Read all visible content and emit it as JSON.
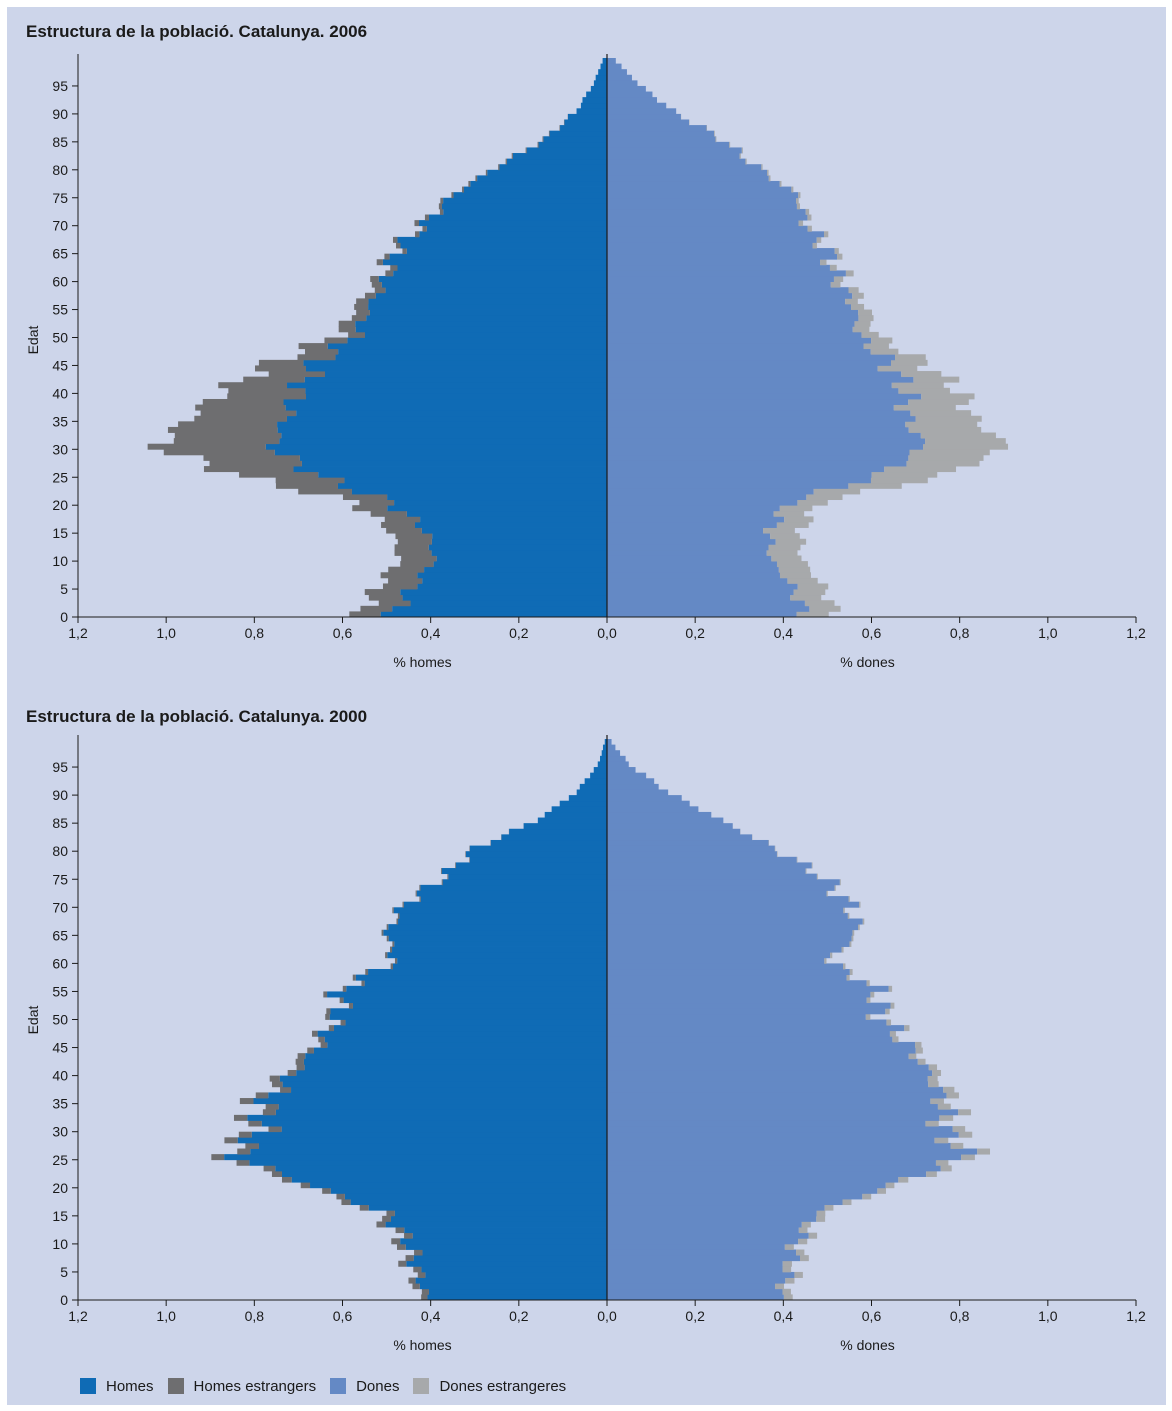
{
  "colors": {
    "homes": "#0f6bb5",
    "homes_estrangers": "#6e6e70",
    "dones": "#6489c5",
    "dones_estrangeres": "#a7a9ab",
    "background": "#cdd5ea"
  },
  "legend": [
    {
      "label": "Homes",
      "color": "#0f6bb5"
    },
    {
      "label": "Homes estrangers",
      "color": "#6e6e70"
    },
    {
      "label": "Dones",
      "color": "#6489c5"
    },
    {
      "label": "Dones estrangeres",
      "color": "#a7a9ab"
    }
  ],
  "chart_data": [
    {
      "type": "bar",
      "orientation": "horizontal",
      "title": "Estructura de la població. Catalunya. 2006",
      "ylabel": "Edat",
      "xlabel_left": "% homes",
      "xlabel_right": "% dones",
      "y_ticks": [
        0,
        5,
        10,
        15,
        20,
        25,
        30,
        35,
        40,
        45,
        50,
        55,
        60,
        65,
        70,
        75,
        80,
        85,
        90,
        95
      ],
      "x_tick_labels": [
        "1,2",
        "1,0",
        "0,8",
        "0,6",
        "0,4",
        "0,2",
        "0,0",
        "0,2",
        "0,4",
        "0,6",
        "0,8",
        "1,0",
        "1,2"
      ],
      "xlim": [
        -1.2,
        1.2
      ],
      "ylim": [
        0,
        99
      ],
      "age_groups": [
        0,
        5,
        10,
        15,
        20,
        25,
        30,
        35,
        40,
        45,
        50,
        55,
        60,
        65,
        70,
        75,
        80,
        85,
        90,
        95,
        99
      ],
      "series": [
        {
          "name": "Homes",
          "values": [
            0.49,
            0.44,
            0.39,
            0.41,
            0.49,
            0.66,
            0.76,
            0.73,
            0.7,
            0.66,
            0.57,
            0.54,
            0.5,
            0.48,
            0.41,
            0.35,
            0.25,
            0.14,
            0.07,
            0.03,
            0.01
          ]
        },
        {
          "name": "Homes estrangers",
          "values": [
            0.07,
            0.08,
            0.08,
            0.08,
            0.08,
            0.18,
            0.26,
            0.22,
            0.17,
            0.1,
            0.04,
            0.03,
            0.02,
            0.01,
            0.01,
            0.005,
            0.003,
            0.002,
            0.0,
            0.0,
            0.0
          ]
        },
        {
          "name": "Dones",
          "values": [
            0.45,
            0.42,
            0.37,
            0.37,
            0.41,
            0.62,
            0.72,
            0.68,
            0.68,
            0.64,
            0.57,
            0.56,
            0.52,
            0.5,
            0.45,
            0.43,
            0.34,
            0.26,
            0.15,
            0.07,
            0.02
          ]
        },
        {
          "name": "Dones estrangeres",
          "values": [
            0.07,
            0.07,
            0.07,
            0.07,
            0.07,
            0.15,
            0.19,
            0.15,
            0.12,
            0.08,
            0.04,
            0.03,
            0.02,
            0.01,
            0.01,
            0.005,
            0.003,
            0.002,
            0.0,
            0.0,
            0.0
          ]
        }
      ]
    },
    {
      "type": "bar",
      "orientation": "horizontal",
      "title": "Estructura de la població. Catalunya. 2000",
      "ylabel": "Edat",
      "xlabel_left": "% homes",
      "xlabel_right": "% dones",
      "y_ticks": [
        0,
        5,
        10,
        15,
        20,
        25,
        30,
        35,
        40,
        45,
        50,
        55,
        60,
        65,
        70,
        75,
        80,
        85,
        90,
        95
      ],
      "x_tick_labels": [
        "1,2",
        "1,0",
        "0,8",
        "0,6",
        "0,4",
        "0,2",
        "0,0",
        "0,2",
        "0,4",
        "0,6",
        "0,8",
        "1,0",
        "1,2"
      ],
      "xlim": [
        -1.2,
        1.2
      ],
      "ylim": [
        0,
        99
      ],
      "age_groups": [
        0,
        5,
        10,
        15,
        20,
        25,
        30,
        35,
        40,
        45,
        50,
        55,
        60,
        65,
        70,
        75,
        80,
        85,
        90,
        95,
        99
      ],
      "series": [
        {
          "name": "Homes",
          "values": [
            0.41,
            0.43,
            0.45,
            0.5,
            0.67,
            0.84,
            0.78,
            0.77,
            0.71,
            0.65,
            0.61,
            0.6,
            0.48,
            0.5,
            0.46,
            0.37,
            0.3,
            0.16,
            0.07,
            0.02,
            0.005
          ]
        },
        {
          "name": "Homes estrangers",
          "values": [
            0.015,
            0.018,
            0.02,
            0.02,
            0.02,
            0.03,
            0.03,
            0.03,
            0.02,
            0.015,
            0.01,
            0.008,
            0.005,
            0.004,
            0.003,
            0.002,
            0.001,
            0.0,
            0.0,
            0.0,
            0.0
          ]
        },
        {
          "name": "Dones",
          "values": [
            0.39,
            0.41,
            0.43,
            0.47,
            0.64,
            0.81,
            0.76,
            0.76,
            0.73,
            0.68,
            0.62,
            0.61,
            0.5,
            0.57,
            0.55,
            0.49,
            0.38,
            0.26,
            0.14,
            0.05,
            0.01
          ]
        },
        {
          "name": "Dones estrangeres",
          "values": [
            0.02,
            0.02,
            0.02,
            0.02,
            0.02,
            0.03,
            0.03,
            0.03,
            0.02,
            0.015,
            0.01,
            0.008,
            0.005,
            0.004,
            0.003,
            0.002,
            0.001,
            0.0,
            0.0,
            0.0,
            0.0
          ]
        }
      ]
    }
  ]
}
